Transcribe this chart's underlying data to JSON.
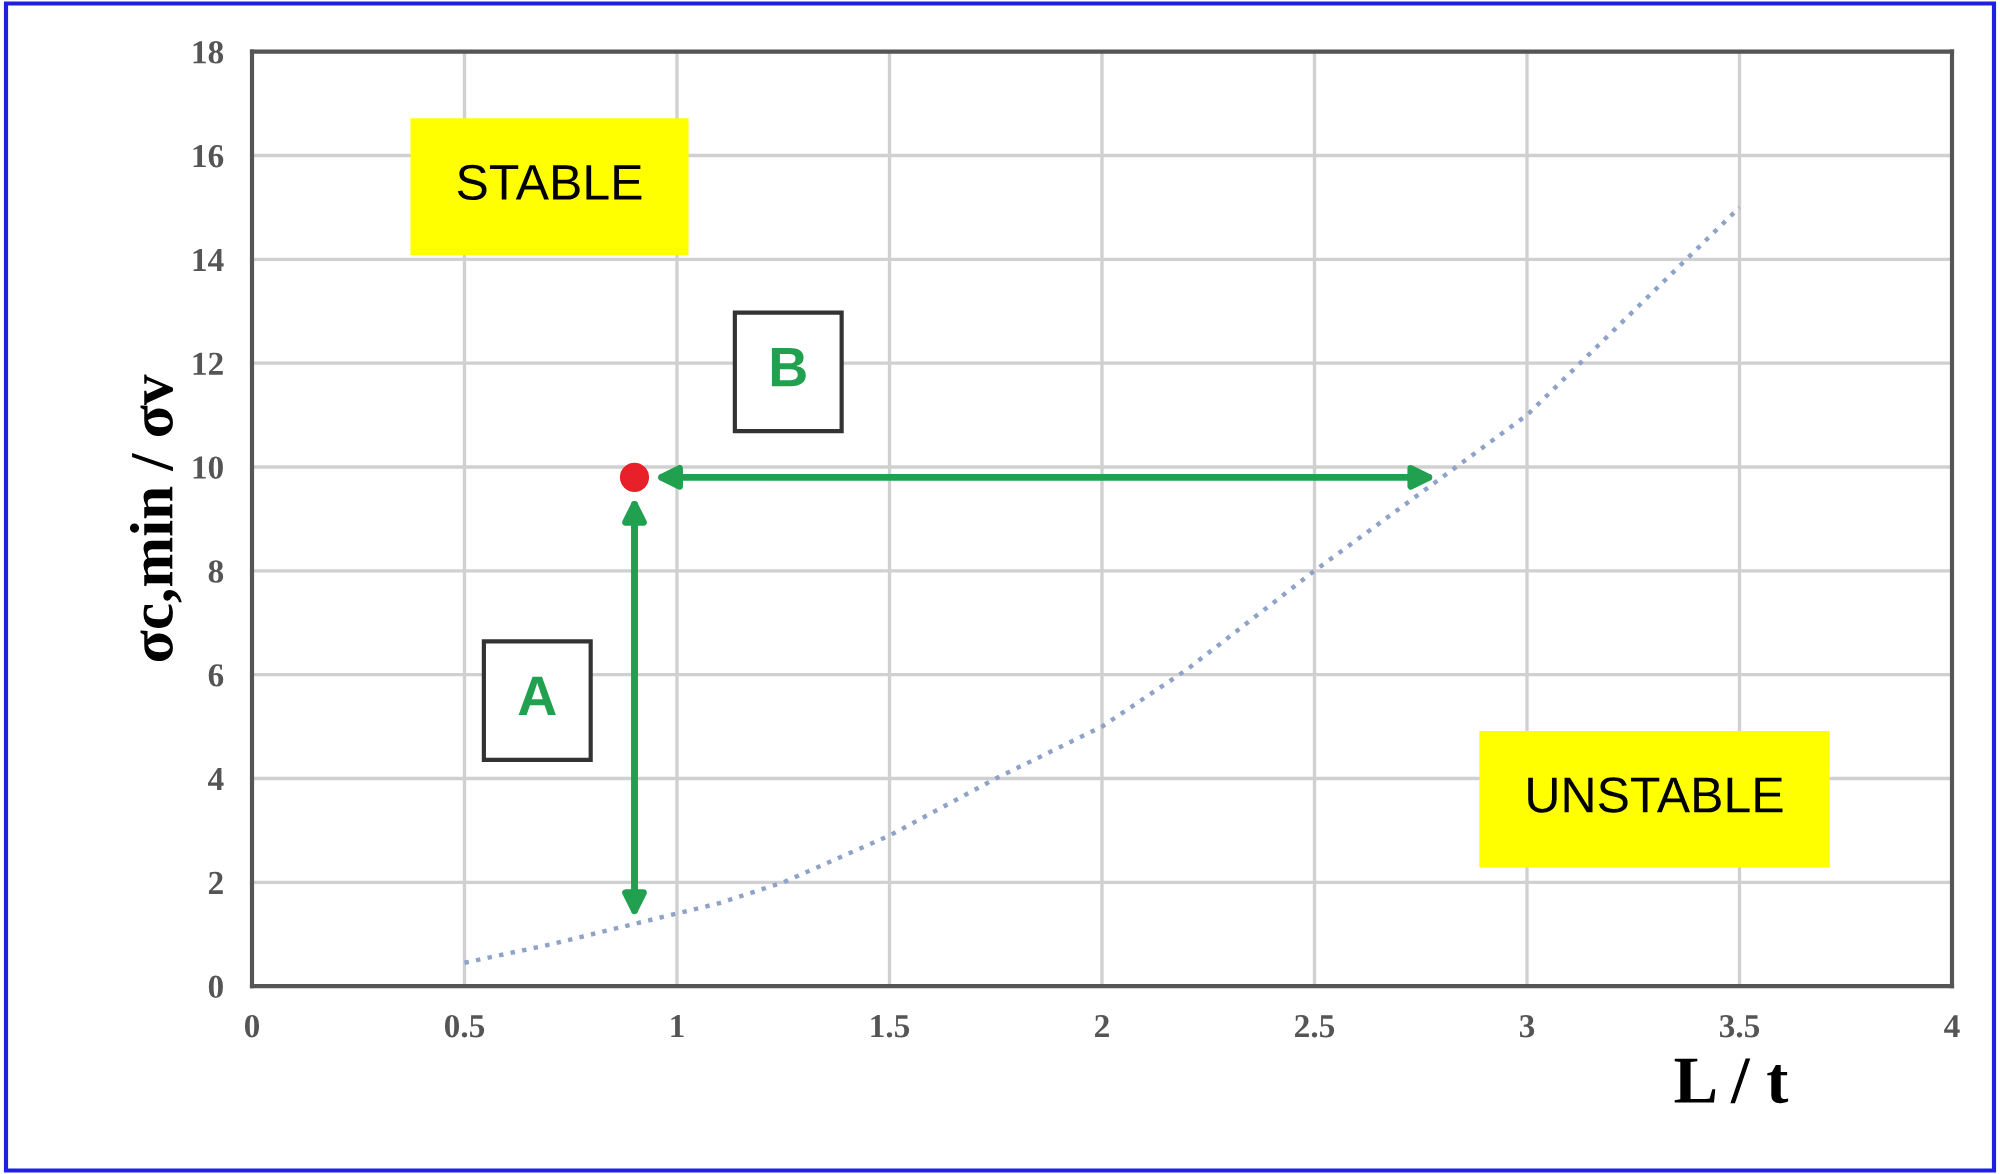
{
  "chart_data": {
    "type": "line",
    "xlabel": "L / t",
    "ylabel": "σc,min / σv",
    "xlim": [
      0,
      4
    ],
    "xticks": [
      0,
      0.5,
      1,
      1.5,
      2,
      2.5,
      3,
      3.5,
      4
    ],
    "ylim": [
      0,
      18
    ],
    "yticks": [
      0,
      2,
      4,
      6,
      8,
      10,
      12,
      14,
      16,
      18
    ],
    "grid": true,
    "series": [
      {
        "color": "#8fa3c8",
        "line_style": "dotted",
        "marker": "none",
        "x": [
          0.5,
          0.7,
          0.9,
          1.1,
          1.25,
          1.5,
          1.75,
          2.0,
          2.2,
          2.5,
          2.8,
          3.0,
          3.25,
          3.5
        ],
        "values": [
          0.45,
          0.8,
          1.2,
          1.6,
          2.0,
          2.9,
          4.0,
          5.0,
          6.1,
          8.0,
          9.8,
          11.0,
          13.0,
          15.0
        ]
      },
      {
        "type": "scatter",
        "color": "#e8202a",
        "marker": "circle",
        "x": [
          0.9
        ],
        "values": [
          9.8
        ]
      }
    ],
    "annotations": [
      "STABLE",
      "UNSTABLE",
      "A",
      "B"
    ]
  }
}
